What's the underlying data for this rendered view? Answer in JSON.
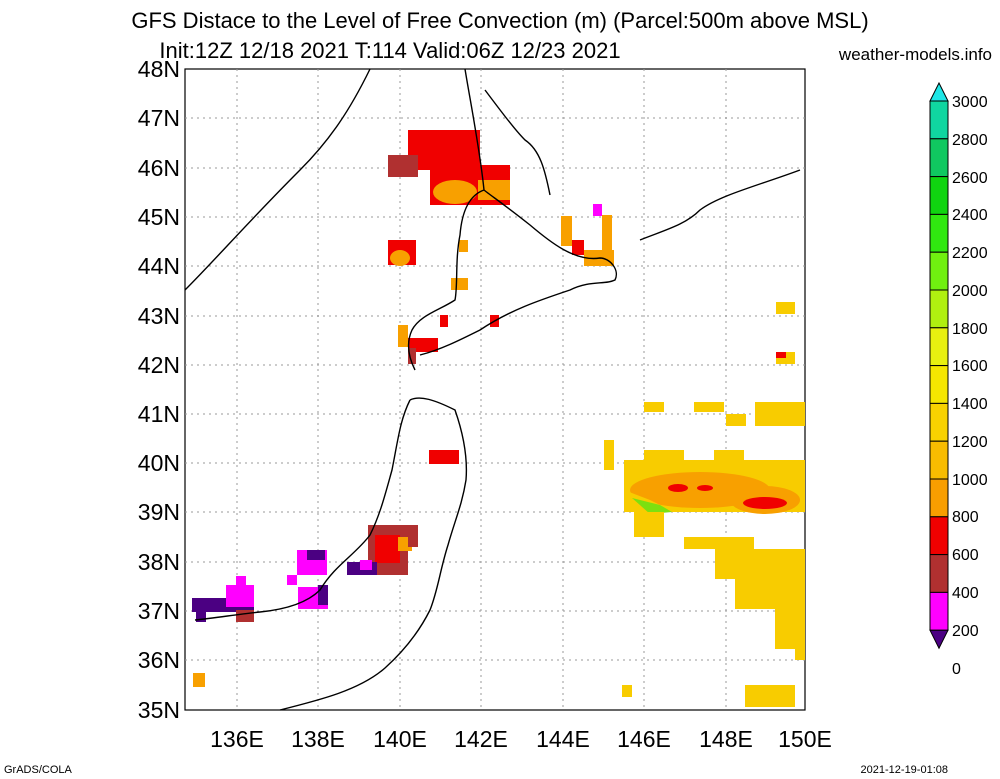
{
  "title_line1": "GFS Distace to the Level of Free Convection (m) (Parcel:500m above MSL)",
  "title_line2": "Init:12Z 12/18 2021 T:114 Valid:06Z 12/23 2021",
  "site": "weather-models.info",
  "footer_left": "GrADS/COLA",
  "footer_right": "2021-12-19-01:08",
  "lat_labels": [
    "48N",
    "47N",
    "46N",
    "45N",
    "44N",
    "43N",
    "42N",
    "41N",
    "40N",
    "39N",
    "38N",
    "37N",
    "36N",
    "35N"
  ],
  "lon_labels": [
    "136E",
    "138E",
    "140E",
    "142E",
    "144E",
    "146E",
    "148E",
    "150E"
  ],
  "colorbar": {
    "labels": [
      "3000",
      "2800",
      "2600",
      "2400",
      "2200",
      "2000",
      "1800",
      "1600",
      "1400",
      "1200",
      "1000",
      "800",
      "600",
      "400",
      "200",
      "0"
    ],
    "colors": [
      "#1ee6e6",
      "#10d6a0",
      "#10c860",
      "#10d410",
      "#30e810",
      "#70f010",
      "#b0f010",
      "#e8f010",
      "#f5e600",
      "#f8d200",
      "#f8bc00",
      "#f89e00",
      "#f00000",
      "#b03030",
      "#ff00ff",
      "#4b0082"
    ]
  },
  "colors": {
    "red": "#f00000",
    "orange": "#f8a000",
    "yellow": "#f8cc00",
    "darkred": "#b03030",
    "magenta": "#ff00ff",
    "purple": "#4b0082",
    "green": "#7ce010"
  }
}
